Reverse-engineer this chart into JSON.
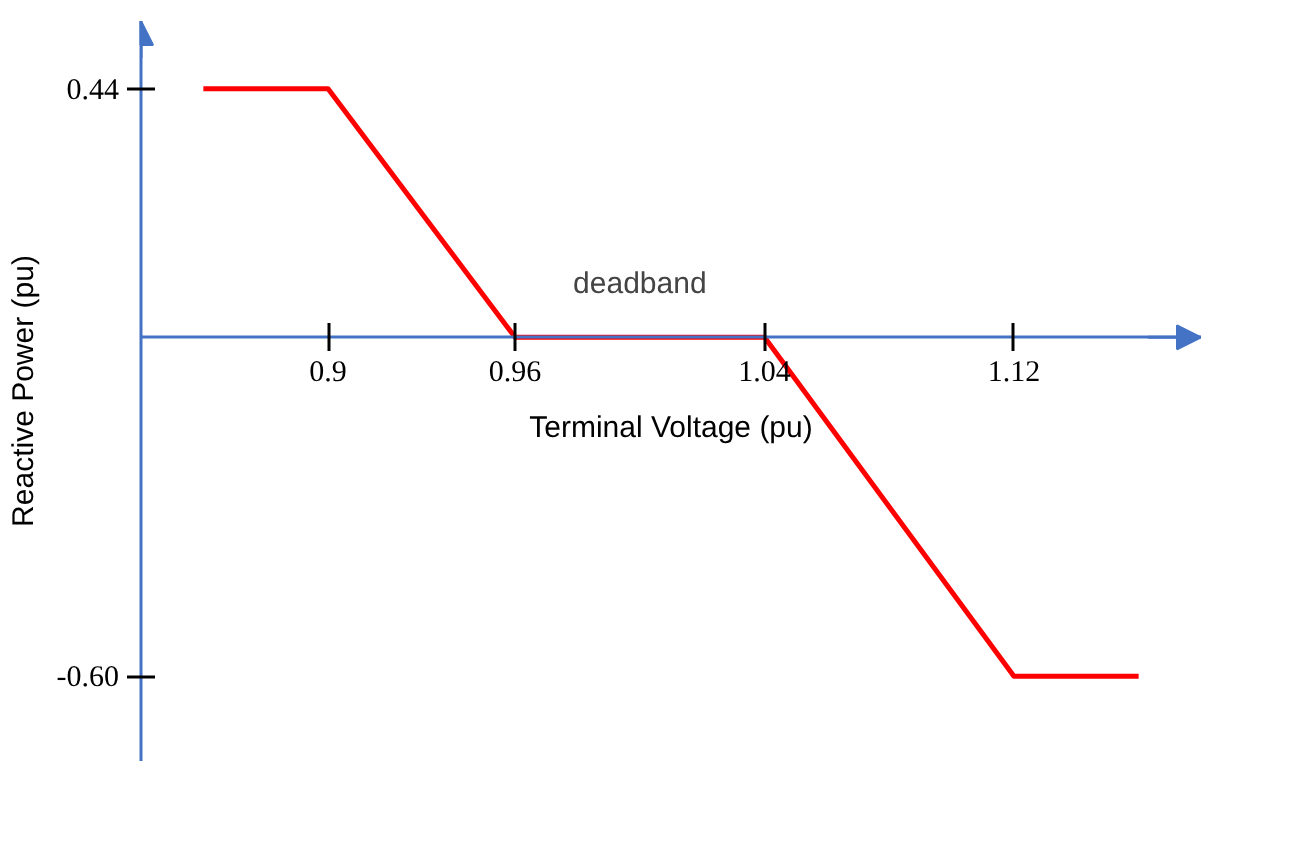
{
  "chart_data": {
    "type": "line",
    "xlabel": "Terminal Voltage (pu)",
    "ylabel": "Reactive Power (pu)",
    "x": [
      0.86,
      0.9,
      0.96,
      1.04,
      1.12,
      1.16
    ],
    "series": [
      {
        "color": "#ff0000",
        "values": [
          0.44,
          0.44,
          0,
          0,
          -0.6,
          -0.6
        ]
      }
    ],
    "xlim": [
      0.84,
      1.18
    ],
    "ylim": [
      -0.75,
      0.56
    ],
    "xticks": [
      0.9,
      0.96,
      1.04,
      1.12
    ],
    "yticks": [
      0.44,
      {
        "value": -0.6,
        "label": "-0.60"
      }
    ],
    "annotations": [
      {
        "text": "deadband",
        "x": 1.0,
        "y": 0
      }
    ],
    "grid": false,
    "marker": "none",
    "line_style": "solid"
  }
}
